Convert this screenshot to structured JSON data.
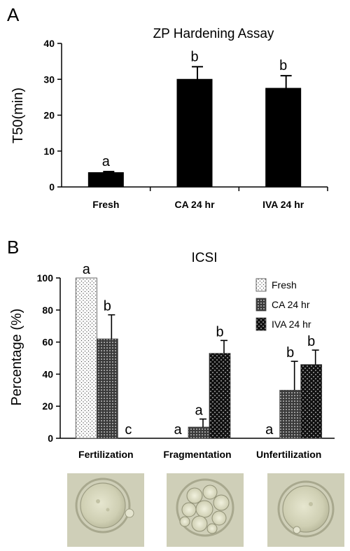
{
  "chart_data": [
    {
      "panel": "A",
      "type": "bar",
      "title": "ZP Hardening Assay",
      "ylabel": "T50(min)",
      "ylim": [
        0,
        40
      ],
      "yticks": [
        0,
        10,
        20,
        30,
        40
      ],
      "categories": [
        "Fresh",
        "CA 24 hr",
        "IVA 24 hr"
      ],
      "values": [
        4,
        30,
        27.5
      ],
      "errors": [
        0.3,
        3.5,
        3.5
      ],
      "significance": [
        "a",
        "b",
        "b"
      ],
      "color": "#000000"
    },
    {
      "panel": "B",
      "type": "bar",
      "title": "ICSI",
      "ylabel": "Percentage (%)",
      "ylim": [
        0,
        100
      ],
      "yticks": [
        0,
        20,
        40,
        60,
        80,
        100
      ],
      "categories": [
        "Fertilization",
        "Fragmentation",
        "Unfertilization"
      ],
      "series": [
        {
          "name": "Fresh",
          "values": [
            100,
            0,
            0
          ],
          "errors": [
            0,
            0,
            0
          ],
          "significance": [
            "a",
            "a",
            "a"
          ],
          "pattern": "dots"
        },
        {
          "name": "CA 24 hr",
          "values": [
            62,
            7,
            30
          ],
          "errors": [
            15,
            5,
            18
          ],
          "significance": [
            "b",
            "a",
            "b"
          ],
          "pattern": "grid"
        },
        {
          "name": "IVA 24 hr",
          "values": [
            0,
            53,
            46
          ],
          "errors": [
            0,
            8,
            9
          ],
          "significance": [
            "c",
            "b",
            "b"
          ],
          "pattern": "checker"
        }
      ],
      "legend_position": "top-right"
    }
  ],
  "images": [
    {
      "name": "fertilized-oocyte-image"
    },
    {
      "name": "fragmented-oocyte-image"
    },
    {
      "name": "unfertilized-oocyte-image"
    }
  ]
}
